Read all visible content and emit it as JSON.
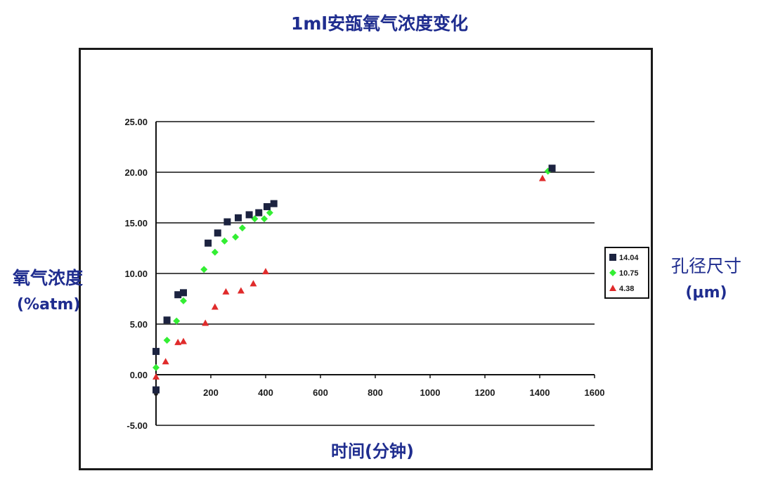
{
  "chart_data": {
    "type": "scatter",
    "title": "1ml安瓿氧气浓度变化",
    "xlabel": "时间(分钟)",
    "ylabel": "氧气浓度",
    "ylabel_unit": "(%atm)",
    "legend_title": "孔径尺寸",
    "legend_unit": "(μm)",
    "legend_position": "right",
    "xlim": [
      0,
      1600
    ],
    "ylim": [
      -5,
      25
    ],
    "x_ticks": [
      "0",
      "200",
      "400",
      "600",
      "800",
      "1000",
      "1200",
      "1400",
      "1600"
    ],
    "y_ticks": [
      "-5.00",
      "0.00",
      "5.00",
      "10.00",
      "15.00",
      "20.00",
      "25.00"
    ],
    "grid": "horizontal",
    "series": [
      {
        "name": "14.04",
        "color": "#1c2340",
        "marker": "square",
        "points": [
          [
            0,
            -1.5
          ],
          [
            0,
            2.3
          ],
          [
            40,
            5.4
          ],
          [
            80,
            7.9
          ],
          [
            100,
            8.1
          ],
          [
            190,
            13.0
          ],
          [
            225,
            14.0
          ],
          [
            260,
            15.1
          ],
          [
            300,
            15.5
          ],
          [
            340,
            15.8
          ],
          [
            375,
            16.0
          ],
          [
            405,
            16.6
          ],
          [
            430,
            16.9
          ],
          [
            1445,
            20.4
          ]
        ]
      },
      {
        "name": "10.75",
        "color": "#33ee33",
        "marker": "diamond",
        "points": [
          [
            0,
            0.7
          ],
          [
            40,
            3.4
          ],
          [
            75,
            5.3
          ],
          [
            100,
            7.3
          ],
          [
            175,
            10.4
          ],
          [
            215,
            12.1
          ],
          [
            250,
            13.2
          ],
          [
            290,
            13.6
          ],
          [
            315,
            14.5
          ],
          [
            360,
            15.4
          ],
          [
            395,
            15.4
          ],
          [
            415,
            16.0
          ],
          [
            1430,
            20.1
          ]
        ]
      },
      {
        "name": "4.38",
        "color": "#e02b2b",
        "marker": "triangle",
        "points": [
          [
            0,
            -0.2
          ],
          [
            35,
            1.3
          ],
          [
            80,
            3.2
          ],
          [
            100,
            3.3
          ],
          [
            180,
            5.1
          ],
          [
            215,
            6.7
          ],
          [
            255,
            8.2
          ],
          [
            310,
            8.3
          ],
          [
            355,
            9.0
          ],
          [
            400,
            10.2
          ],
          [
            1410,
            19.4
          ]
        ]
      }
    ]
  }
}
